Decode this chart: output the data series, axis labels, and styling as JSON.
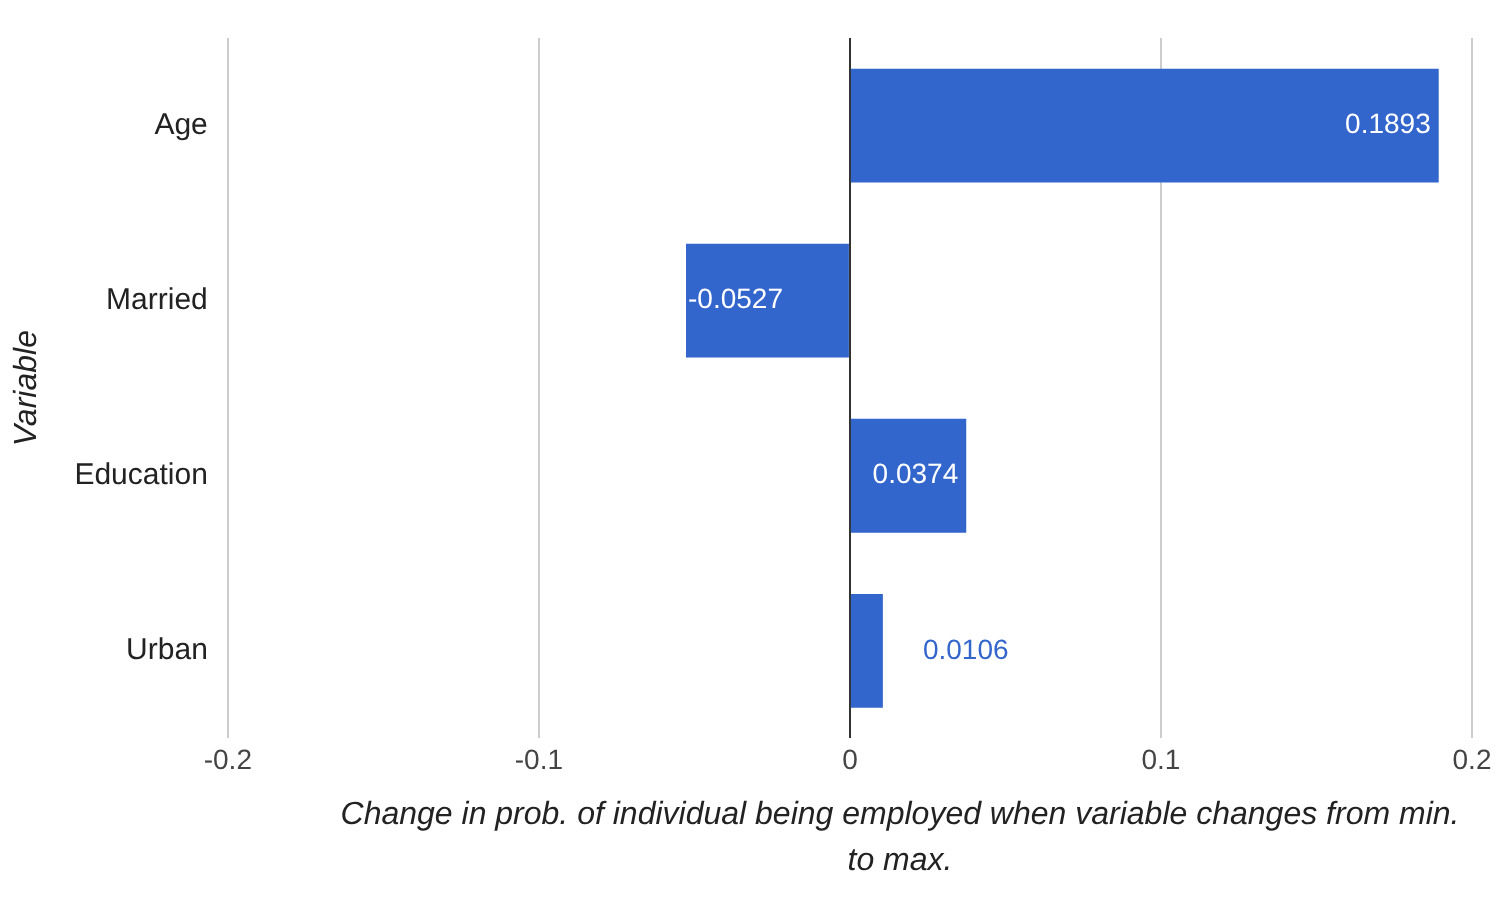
{
  "chart_data": {
    "type": "bar",
    "orientation": "horizontal",
    "xlabel": "Change in prob. of individual being employed when variable changes from min. to max.",
    "ylabel": "Variable",
    "categories": [
      "Age",
      "Married",
      "Education",
      "Urban"
    ],
    "values": [
      0.1893,
      -0.0527,
      0.0374,
      0.0106
    ],
    "color": "#3366cc",
    "xlim": [
      -0.2,
      0.2
    ],
    "xticks": [
      -0.2,
      -0.1,
      0,
      0.1,
      0.2
    ],
    "grid": "x",
    "legend": false,
    "data_labels": true
  }
}
